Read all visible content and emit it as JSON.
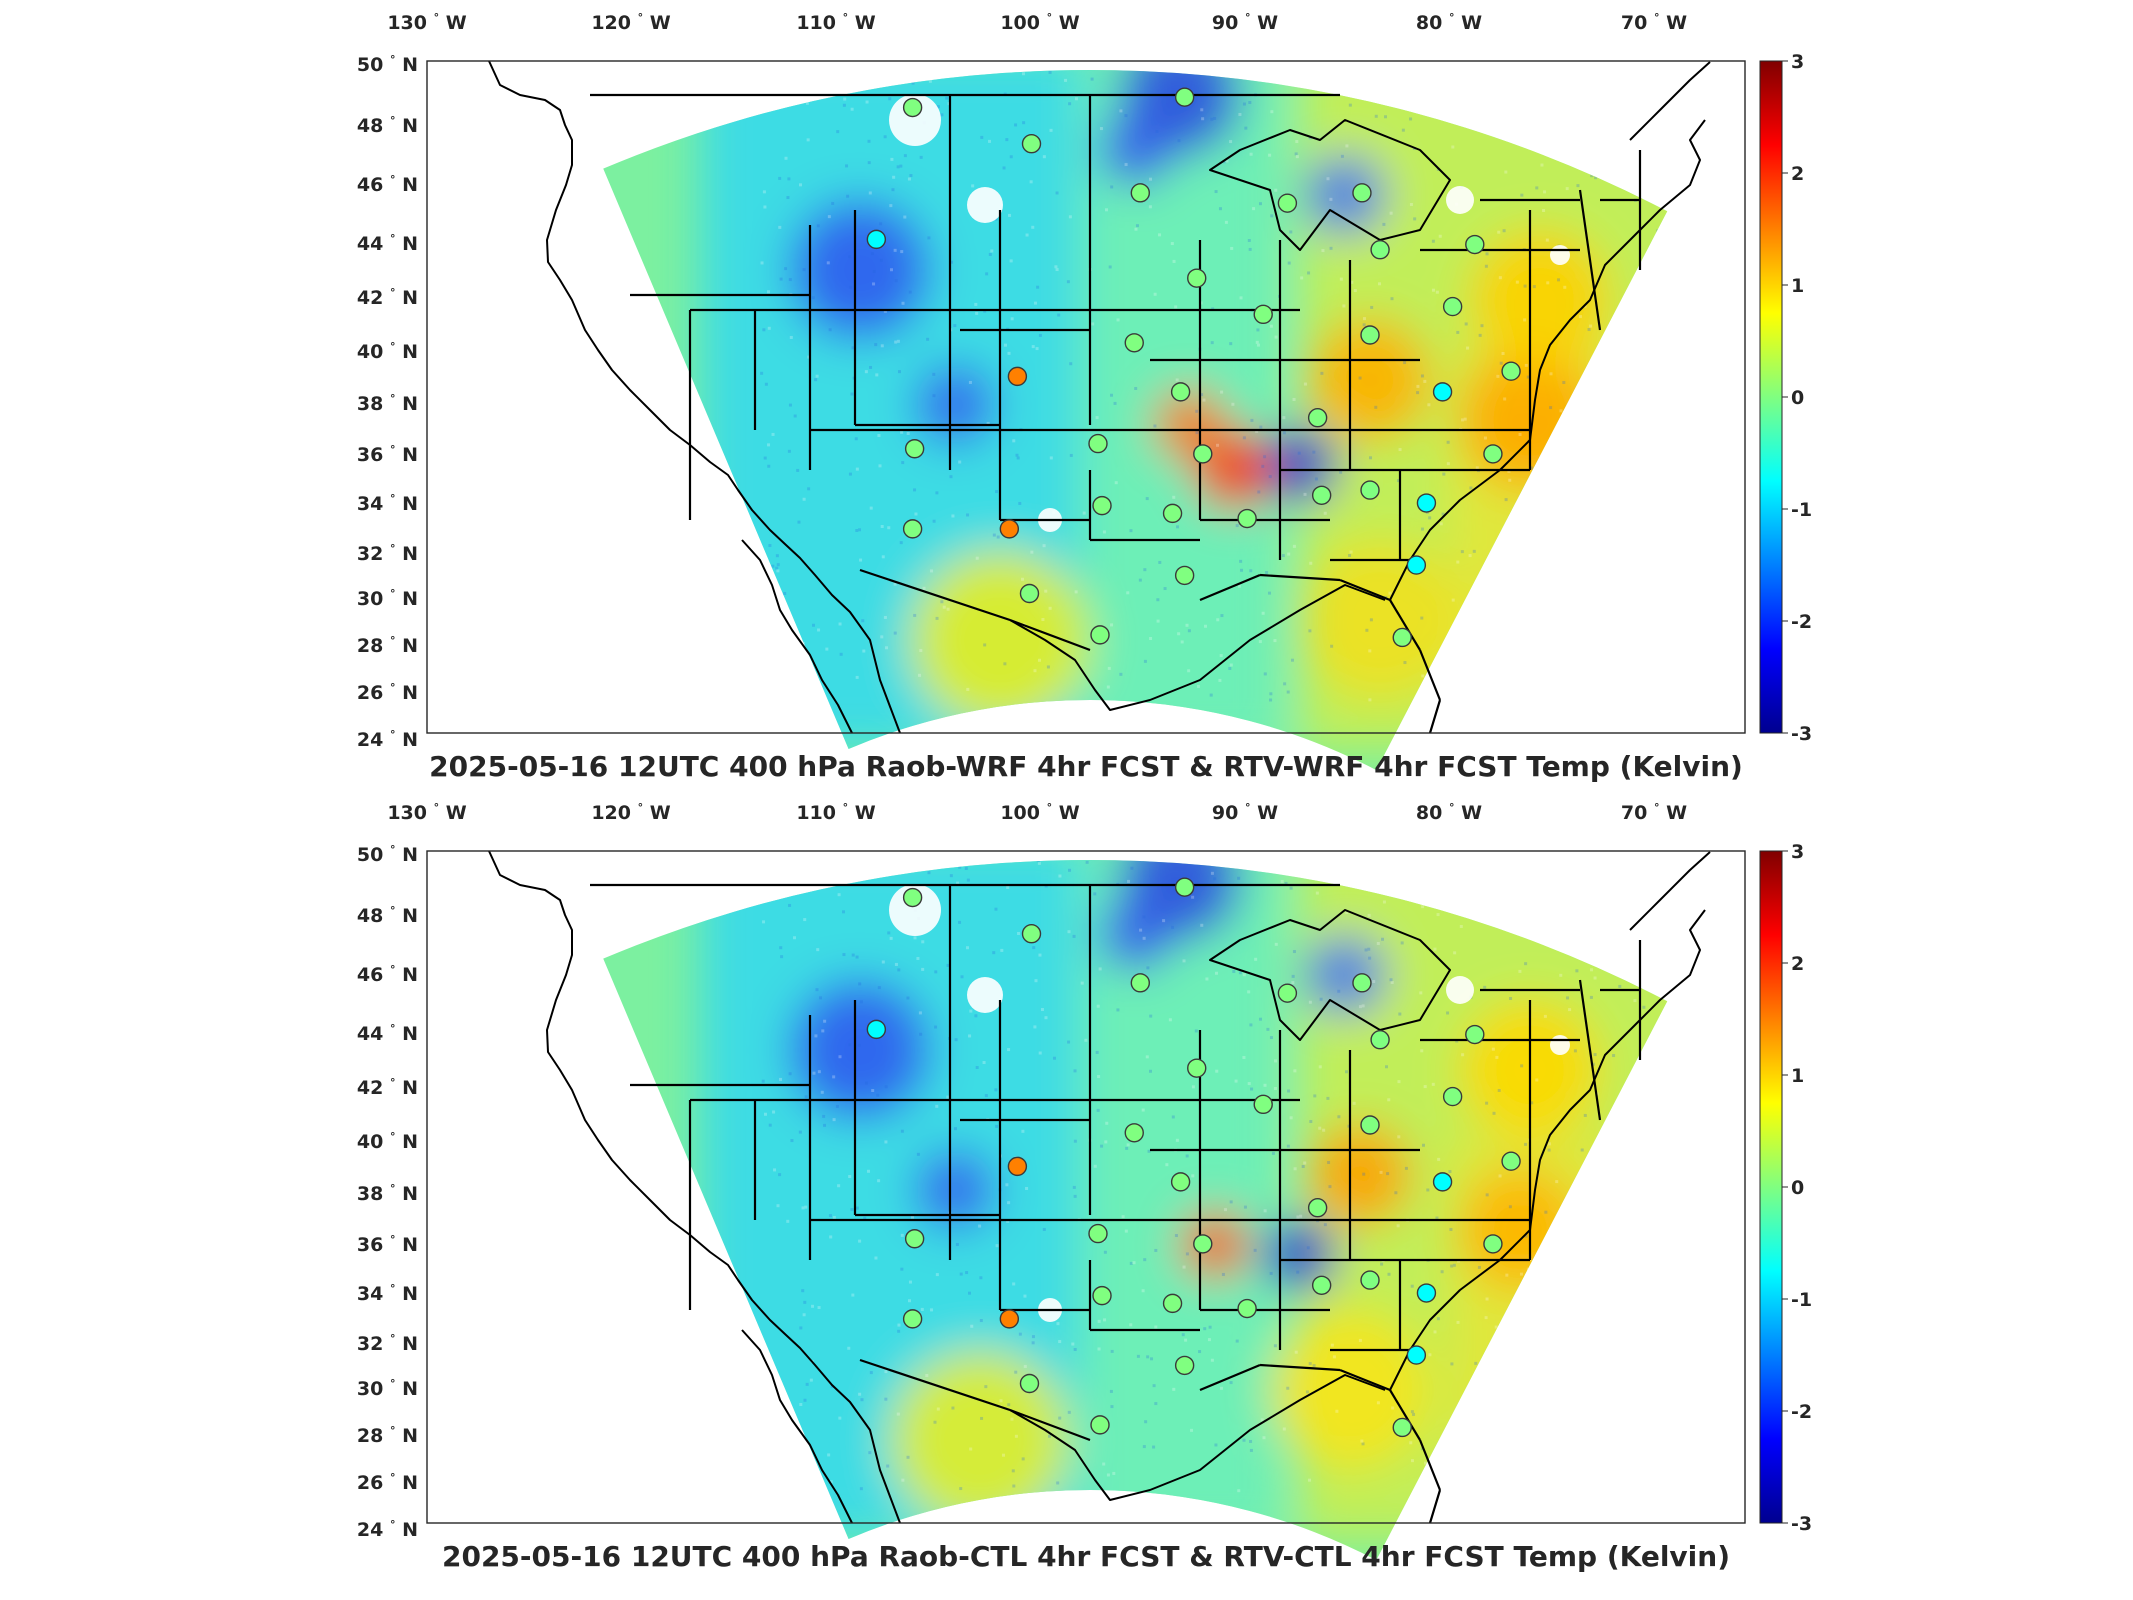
{
  "panels": [
    {
      "title": "2025-05-16 12UTC 400 hPa Raob-WRF 4hr FCST & RTV-WRF 4hr FCST Temp (Kelvin)",
      "hotspots": [
        {
          "cx": 1235,
          "cy": 470,
          "r": 40,
          "color": "#ff3300"
        },
        {
          "cx": 1190,
          "cy": 425,
          "r": 36,
          "color": "#ff7700"
        },
        {
          "cx": 1370,
          "cy": 380,
          "r": 60,
          "color": "#ffb000"
        },
        {
          "cx": 1530,
          "cy": 420,
          "r": 70,
          "color": "#ffa800"
        },
        {
          "cx": 1655,
          "cy": 445,
          "r": 26,
          "color": "#ff8800"
        },
        {
          "cx": 1540,
          "cy": 300,
          "r": 70,
          "color": "#ffd000"
        },
        {
          "cx": 1380,
          "cy": 620,
          "r": 80,
          "color": "#f0e020"
        },
        {
          "cx": 1000,
          "cy": 640,
          "r": 90,
          "color": "#e8ee20"
        }
      ],
      "coldspots": [
        {
          "cx": 860,
          "cy": 270,
          "r": 70,
          "color": "#2f5df0"
        },
        {
          "cx": 1180,
          "cy": 95,
          "r": 60,
          "color": "#2a4fe0"
        },
        {
          "cx": 1300,
          "cy": 465,
          "r": 38,
          "color": "#1a33d0"
        },
        {
          "cx": 1135,
          "cy": 150,
          "r": 35,
          "color": "#3355ee"
        },
        {
          "cx": 955,
          "cy": 405,
          "r": 40,
          "color": "#3366ee"
        },
        {
          "cx": 1345,
          "cy": 195,
          "r": 40,
          "color": "#4477f0"
        }
      ]
    },
    {
      "title": "2025-05-16 12UTC 400 hPa Raob-CTL 4hr FCST & RTV-CTL 4hr FCST Temp (Kelvin)",
      "hotspots": [
        {
          "cx": 1215,
          "cy": 455,
          "r": 34,
          "color": "#ff5a00"
        },
        {
          "cx": 1360,
          "cy": 385,
          "r": 50,
          "color": "#ffa000"
        },
        {
          "cx": 1520,
          "cy": 440,
          "r": 60,
          "color": "#ffb400"
        },
        {
          "cx": 1650,
          "cy": 445,
          "r": 24,
          "color": "#ff9000"
        },
        {
          "cx": 1530,
          "cy": 280,
          "r": 70,
          "color": "#ffd800"
        },
        {
          "cx": 1350,
          "cy": 600,
          "r": 80,
          "color": "#f6e41a"
        },
        {
          "cx": 980,
          "cy": 650,
          "r": 90,
          "color": "#e6ee28"
        }
      ],
      "coldspots": [
        {
          "cx": 860,
          "cy": 260,
          "r": 70,
          "color": "#2f5df0"
        },
        {
          "cx": 1180,
          "cy": 90,
          "r": 60,
          "color": "#2a4fe0"
        },
        {
          "cx": 1300,
          "cy": 465,
          "r": 36,
          "color": "#1a33d0"
        },
        {
          "cx": 1135,
          "cy": 145,
          "r": 35,
          "color": "#3355ee"
        },
        {
          "cx": 955,
          "cy": 400,
          "r": 40,
          "color": "#3366ee"
        },
        {
          "cx": 1345,
          "cy": 185,
          "r": 40,
          "color": "#4477f0"
        }
      ]
    }
  ],
  "lon_ticks": [
    "130",
    "120",
    "110",
    "100",
    "90",
    "80",
    "70"
  ],
  "lon_dir": "W",
  "lat_ticks": [
    "50",
    "48",
    "46",
    "44",
    "42",
    "40",
    "38",
    "36",
    "34",
    "32",
    "30",
    "28",
    "26",
    "24"
  ],
  "lat_dir": "N",
  "degree_symbol": "°",
  "colorbar_ticks": [
    "3",
    "2",
    "1",
    "0",
    "-1",
    "-2",
    "-3"
  ],
  "colorbar_range": [
    -3,
    3
  ],
  "colormap": [
    "#00008f",
    "#0000ff",
    "#0080ff",
    "#00ffff",
    "#80ff80",
    "#ffff00",
    "#ff8000",
    "#ff0000",
    "#800000"
  ],
  "stations": [
    {
      "lon": -106.7,
      "lat": 48.2,
      "value": -0.1
    },
    {
      "lon": -100.8,
      "lat": 46.8,
      "value": -0.1
    },
    {
      "lon": -93.2,
      "lat": 48.6,
      "value": -0.3
    },
    {
      "lon": -95.4,
      "lat": 44.9,
      "value": -0.2
    },
    {
      "lon": -108.5,
      "lat": 43.1,
      "value": -0.6
    },
    {
      "lon": -88.1,
      "lat": 44.5,
      "value": 0.0
    },
    {
      "lon": -84.4,
      "lat": 44.9,
      "value": -0.3
    },
    {
      "lon": -83.5,
      "lat": 42.7,
      "value": 0.1
    },
    {
      "lon": -92.6,
      "lat": 41.6,
      "value": 0.0
    },
    {
      "lon": -78.8,
      "lat": 42.9,
      "value": 0.0
    },
    {
      "lon": -89.3,
      "lat": 40.2,
      "value": -0.1
    },
    {
      "lon": -79.9,
      "lat": 40.5,
      "value": 0.2
    },
    {
      "lon": -84.0,
      "lat": 39.4,
      "value": -0.2
    },
    {
      "lon": -95.7,
      "lat": 39.1,
      "value": 0.1
    },
    {
      "lon": -101.5,
      "lat": 37.8,
      "value": 1.3
    },
    {
      "lon": -93.4,
      "lat": 37.2,
      "value": 0.2
    },
    {
      "lon": -86.6,
      "lat": 36.2,
      "value": -0.1
    },
    {
      "lon": -80.4,
      "lat": 37.2,
      "value": -0.8
    },
    {
      "lon": -77.0,
      "lat": 38.0,
      "value": 0.1
    },
    {
      "lon": -106.6,
      "lat": 35.0,
      "value": 0.0
    },
    {
      "lon": -97.5,
      "lat": 35.2,
      "value": 0.0
    },
    {
      "lon": -92.3,
      "lat": 34.8,
      "value": 0.3
    },
    {
      "lon": -77.9,
      "lat": 34.8,
      "value": 0.0
    },
    {
      "lon": -97.3,
      "lat": 32.8,
      "value": -0.1
    },
    {
      "lon": -93.8,
      "lat": 32.5,
      "value": 0.1
    },
    {
      "lon": -90.1,
      "lat": 32.3,
      "value": -0.2
    },
    {
      "lon": -86.4,
      "lat": 33.2,
      "value": 0.2
    },
    {
      "lon": -84.0,
      "lat": 33.4,
      "value": 0.2
    },
    {
      "lon": -81.2,
      "lat": 32.9,
      "value": -0.4
    },
    {
      "lon": -106.7,
      "lat": 31.9,
      "value": -0.1
    },
    {
      "lon": -101.9,
      "lat": 31.9,
      "value": 1.4
    },
    {
      "lon": -100.9,
      "lat": 29.4,
      "value": 0.1
    },
    {
      "lon": -93.2,
      "lat": 30.1,
      "value": 0.0
    },
    {
      "lon": -81.7,
      "lat": 30.5,
      "value": -0.6
    },
    {
      "lon": -97.4,
      "lat": 27.8,
      "value": 0.1
    },
    {
      "lon": -82.4,
      "lat": 27.7,
      "value": 0.2
    }
  ]
}
